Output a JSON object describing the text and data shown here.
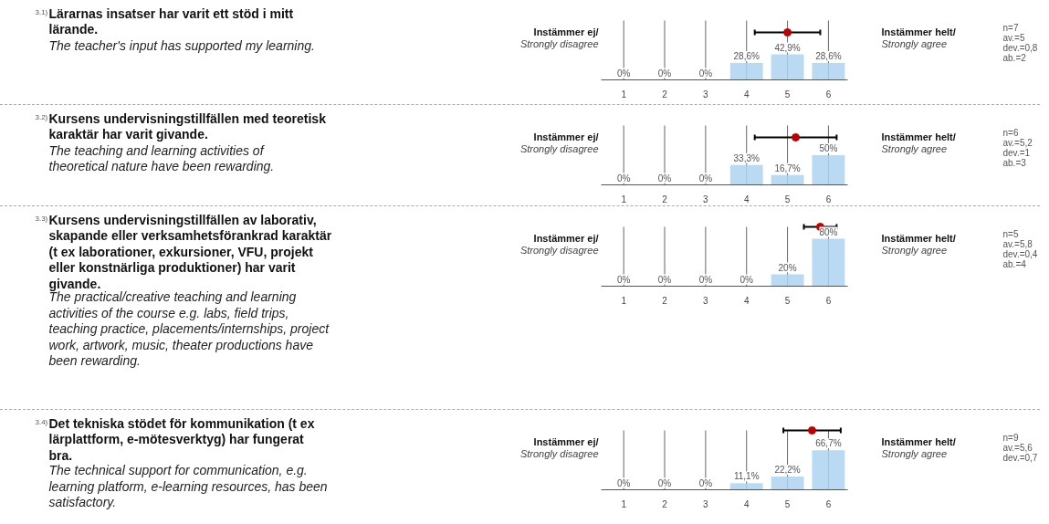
{
  "chart_data": [
    {
      "type": "bar",
      "annotations": [
        "3.1)",
        "Lärarnas insatser har varit ett stöd i mitt lärande.",
        "The teacher's input has supported my learning.",
        "Instämmer ej/",
        "Strongly disagree",
        "Instämmer helt/",
        "Strongly agree",
        "n=7",
        "av.=5",
        "dev.=0,8",
        "ab.=2"
      ],
      "xlim": [
        0.45,
        6.47
      ],
      "xticks": [
        1,
        2,
        3,
        4,
        5,
        6
      ],
      "ylim": [
        0,
        100
      ],
      "tick_labels": "x",
      "grid": "x",
      "series": [
        {
          "type": "bar",
          "color": "#aed3f2",
          "x": [
            1,
            2,
            3,
            4,
            5,
            6
          ],
          "values": [
            0,
            0,
            0,
            28.6,
            42.9,
            28.6
          ],
          "value_labels": [
            "0%",
            "0%",
            "0%",
            "28,6%",
            "42,9%",
            "28,6%"
          ]
        },
        {
          "type": "scatter",
          "marker": "circle",
          "color": "#c00000",
          "x": [
            5
          ],
          "values": [
            80
          ],
          "xerrors": [
            0.8
          ]
        }
      ]
    },
    {
      "type": "bar",
      "annotations": [
        "3.2)",
        "Kursens undervisningstillfällen med teoretisk karaktär har varit givande.",
        "The teaching and learning activities of theoretical nature have been rewarding.",
        "Instämmer ej/",
        "Strongly disagree",
        "Instämmer helt/",
        "Strongly agree",
        "n=6",
        "av.=5,2",
        "dev.=1",
        "ab.=3"
      ],
      "xlim": [
        0.45,
        6.47
      ],
      "xticks": [
        1,
        2,
        3,
        4,
        5,
        6
      ],
      "ylim": [
        0,
        100
      ],
      "tick_labels": "x",
      "grid": "x",
      "series": [
        {
          "type": "bar",
          "color": "#aed3f2",
          "x": [
            1,
            2,
            3,
            4,
            5,
            6
          ],
          "values": [
            0,
            0,
            0,
            33.3,
            16.7,
            50
          ],
          "value_labels": [
            "0%",
            "0%",
            "0%",
            "33,3%",
            "16,7%",
            "50%"
          ]
        },
        {
          "type": "scatter",
          "marker": "circle",
          "color": "#c00000",
          "x": [
            5.2
          ],
          "values": [
            80
          ],
          "xerrors": [
            1
          ]
        }
      ]
    },
    {
      "type": "bar",
      "annotations": [
        "3.3)",
        "Kursens undervisningstillfällen av laborativ, skapande eller verksamhetsförankrad karaktär (t ex laborationer, exkursioner, VFU, projekt eller konstnärliga produktioner) har varit givande.",
        "The practical/creative teaching and learning activities of the course e.g. labs, field trips, teaching practice, placements/internships, project work, artwork, music, theater productions have been rewarding.",
        "Instämmer ej/",
        "Strongly disagree",
        "Instämmer helt/",
        "Strongly agree",
        "n=5",
        "av.=5,8",
        "dev.=0,4",
        "ab.=4"
      ],
      "xlim": [
        0.45,
        6.47
      ],
      "xticks": [
        1,
        2,
        3,
        4,
        5,
        6
      ],
      "ylim": [
        0,
        100
      ],
      "tick_labels": "x",
      "grid": "x",
      "series": [
        {
          "type": "bar",
          "color": "#aed3f2",
          "x": [
            1,
            2,
            3,
            4,
            5,
            6
          ],
          "values": [
            0,
            0,
            0,
            0,
            20,
            80
          ],
          "value_labels": [
            "0%",
            "0%",
            "0%",
            "0%",
            "20%",
            "80%"
          ]
        },
        {
          "type": "scatter",
          "marker": "circle",
          "color": "#c00000",
          "x": [
            5.8
          ],
          "values": [
            100
          ],
          "xerrors": [
            0.4
          ]
        }
      ]
    },
    {
      "type": "bar",
      "annotations": [
        "3.4)",
        "Det tekniska stödet för kommunikation (t ex lärplattform, e-mötesverktyg) har fungerat bra.",
        "The technical support for communication, e.g. learning platform, e-learning resources, has been satisfactory.",
        "Instämmer ej/",
        "Strongly disagree",
        "Instämmer helt/",
        "Strongly agree",
        "n=9",
        "av.=5,6",
        "dev.=0,7"
      ],
      "xlim": [
        0.45,
        6.47
      ],
      "xticks": [
        1,
        2,
        3,
        4,
        5,
        6
      ],
      "ylim": [
        0,
        100
      ],
      "tick_labels": "x",
      "grid": "x",
      "series": [
        {
          "type": "bar",
          "color": "#aed3f2",
          "x": [
            1,
            2,
            3,
            4,
            5,
            6
          ],
          "values": [
            0,
            0,
            0,
            11.1,
            22.2,
            66.7
          ],
          "value_labels": [
            "0%",
            "0%",
            "0%",
            "11,1%",
            "22,2%",
            "66,7%"
          ]
        },
        {
          "type": "scatter",
          "marker": "circle",
          "color": "#c00000",
          "x": [
            5.6
          ],
          "values": [
            100
          ],
          "xerrors": [
            0.7
          ]
        }
      ]
    }
  ]
}
